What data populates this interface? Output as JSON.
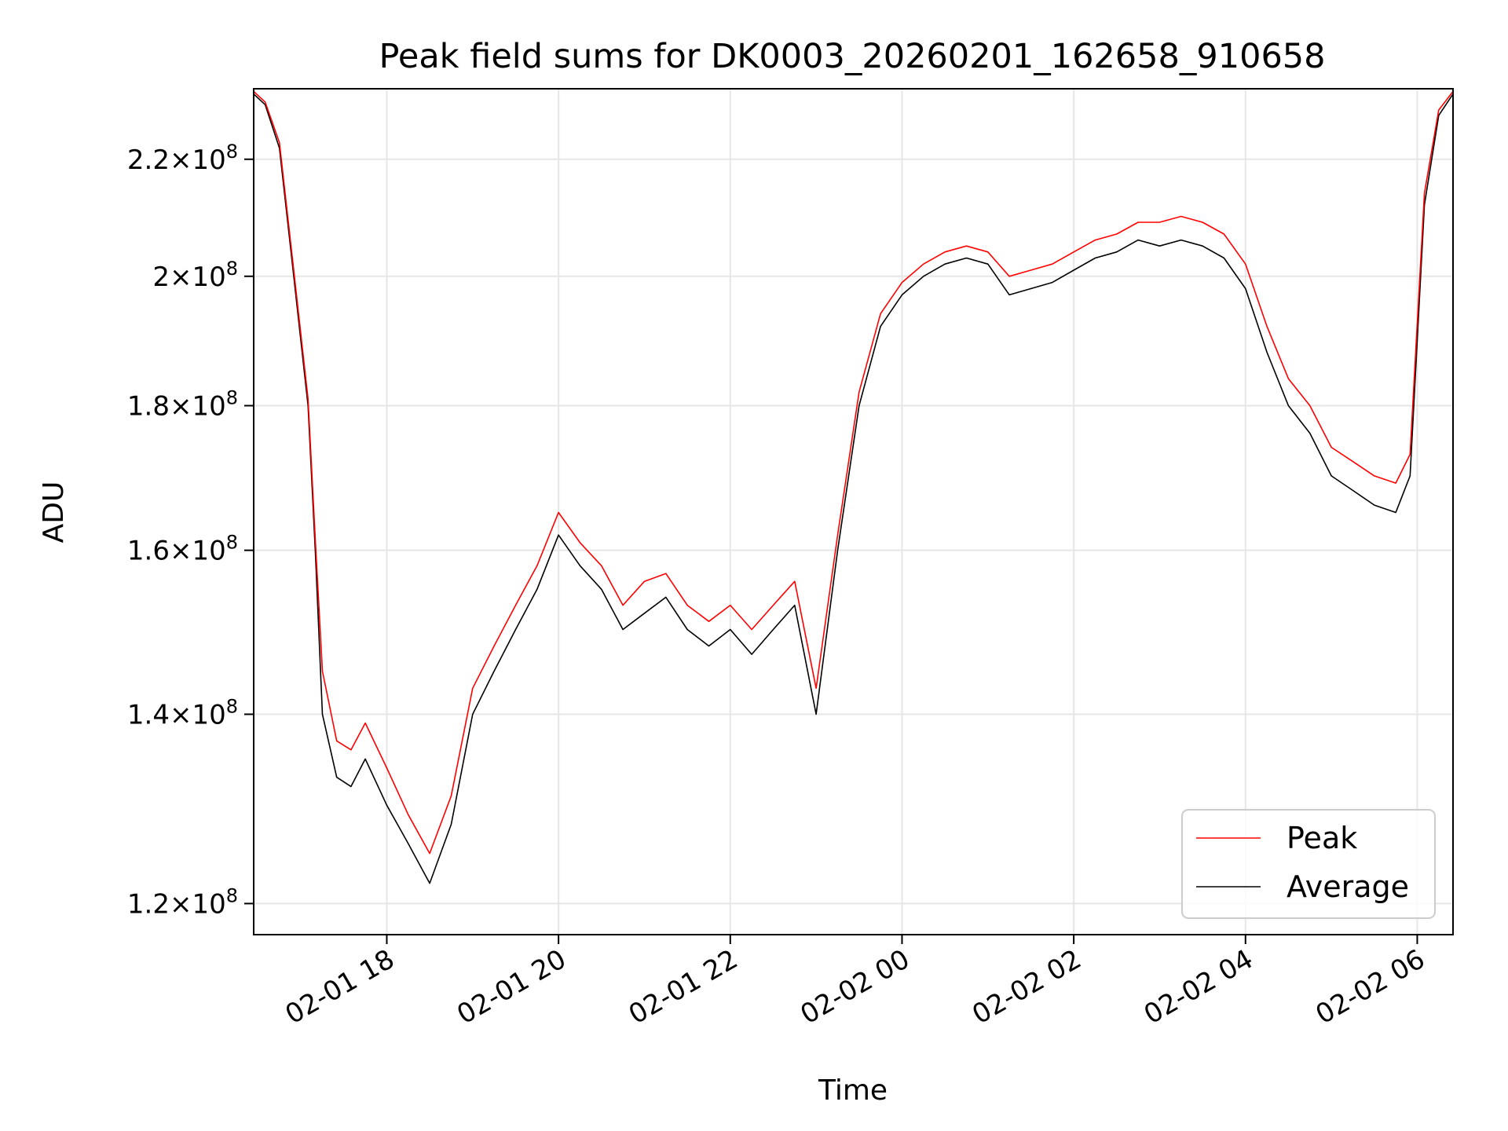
{
  "chart_data": {
    "type": "line",
    "title": "Peak field sums for DK0003_20260201_162658_910658",
    "xlabel": "Time",
    "ylabel": "ADU",
    "y_scale": "log",
    "ylim": [
      117000000,
      233000000
    ],
    "x_range": [
      "2026-02-01 16:27",
      "2026-02-02 06:25"
    ],
    "x_ticks": [
      {
        "value": "2026-02-01 18:00",
        "label": "02-01 18"
      },
      {
        "value": "2026-02-01 20:00",
        "label": "02-01 20"
      },
      {
        "value": "2026-02-01 22:00",
        "label": "02-01 22"
      },
      {
        "value": "2026-02-02 00:00",
        "label": "02-02 00"
      },
      {
        "value": "2026-02-02 02:00",
        "label": "02-02 02"
      },
      {
        "value": "2026-02-02 04:00",
        "label": "02-02 04"
      },
      {
        "value": "2026-02-02 06:00",
        "label": "02-02 06"
      }
    ],
    "y_ticks": [
      {
        "value": 120000000,
        "base": "1.2",
        "exp": "8"
      },
      {
        "value": 140000000,
        "base": "1.4",
        "exp": "8"
      },
      {
        "value": 160000000,
        "base": "1.6",
        "exp": "8"
      },
      {
        "value": 180000000,
        "base": "1.8",
        "exp": "8"
      },
      {
        "value": 200000000,
        "base": "2",
        "exp": "8"
      },
      {
        "value": 220000000,
        "base": "2.2",
        "exp": "8"
      }
    ],
    "grid": true,
    "legend_position": "bottom-right",
    "series": [
      {
        "name": "Average",
        "color": "#000000",
        "x": [
          "2026-02-01 16:27",
          "2026-02-01 16:35",
          "2026-02-01 16:45",
          "2026-02-01 16:55",
          "2026-02-01 17:05",
          "2026-02-01 17:10",
          "2026-02-01 17:15",
          "2026-02-01 17:25",
          "2026-02-01 17:35",
          "2026-02-01 17:45",
          "2026-02-01 18:00",
          "2026-02-01 18:15",
          "2026-02-01 18:30",
          "2026-02-01 18:45",
          "2026-02-01 19:00",
          "2026-02-01 19:15",
          "2026-02-01 19:30",
          "2026-02-01 19:45",
          "2026-02-01 20:00",
          "2026-02-01 20:15",
          "2026-02-01 20:30",
          "2026-02-01 20:45",
          "2026-02-01 21:00",
          "2026-02-01 21:15",
          "2026-02-01 21:30",
          "2026-02-01 21:45",
          "2026-02-01 22:00",
          "2026-02-01 22:15",
          "2026-02-01 22:30",
          "2026-02-01 22:45",
          "2026-02-01 23:00",
          "2026-02-01 23:15",
          "2026-02-01 23:30",
          "2026-02-01 23:45",
          "2026-02-02 00:00",
          "2026-02-02 00:15",
          "2026-02-02 00:30",
          "2026-02-02 00:45",
          "2026-02-02 01:00",
          "2026-02-02 01:15",
          "2026-02-02 01:30",
          "2026-02-02 01:45",
          "2026-02-02 02:00",
          "2026-02-02 02:15",
          "2026-02-02 02:30",
          "2026-02-02 02:45",
          "2026-02-02 03:00",
          "2026-02-02 03:15",
          "2026-02-02 03:30",
          "2026-02-02 03:45",
          "2026-02-02 04:00",
          "2026-02-02 04:15",
          "2026-02-02 04:30",
          "2026-02-02 04:45",
          "2026-02-02 05:00",
          "2026-02-02 05:15",
          "2026-02-02 05:30",
          "2026-02-02 05:45",
          "2026-02-02 05:55",
          "2026-02-02 06:05",
          "2026-02-02 06:15",
          "2026-02-02 06:25"
        ],
        "values": [
          232000000,
          230000000,
          222000000,
          200000000,
          180000000,
          160000000,
          140000000,
          133000000,
          132000000,
          135000000,
          130000000,
          126000000,
          122000000,
          128000000,
          140000000,
          145000000,
          150000000,
          155000000,
          162000000,
          158000000,
          155000000,
          150000000,
          152000000,
          154000000,
          150000000,
          148000000,
          150000000,
          147000000,
          150000000,
          153000000,
          140000000,
          160000000,
          180000000,
          192000000,
          197000000,
          200000000,
          202000000,
          203000000,
          202000000,
          197000000,
          198000000,
          199000000,
          201000000,
          203000000,
          204000000,
          206000000,
          205000000,
          206000000,
          205000000,
          203000000,
          198000000,
          188000000,
          180000000,
          176000000,
          170000000,
          168000000,
          166000000,
          165000000,
          170000000,
          212000000,
          228000000,
          232000000
        ]
      },
      {
        "name": "Peak",
        "color": "#ff0000",
        "x": [
          "2026-02-01 16:27",
          "2026-02-01 16:35",
          "2026-02-01 16:45",
          "2026-02-01 16:55",
          "2026-02-01 17:05",
          "2026-02-01 17:10",
          "2026-02-01 17:15",
          "2026-02-01 17:25",
          "2026-02-01 17:35",
          "2026-02-01 17:45",
          "2026-02-01 18:00",
          "2026-02-01 18:15",
          "2026-02-01 18:30",
          "2026-02-01 18:45",
          "2026-02-01 19:00",
          "2026-02-01 19:15",
          "2026-02-01 19:30",
          "2026-02-01 19:45",
          "2026-02-01 20:00",
          "2026-02-01 20:15",
          "2026-02-01 20:30",
          "2026-02-01 20:45",
          "2026-02-01 21:00",
          "2026-02-01 21:15",
          "2026-02-01 21:30",
          "2026-02-01 21:45",
          "2026-02-01 22:00",
          "2026-02-01 22:15",
          "2026-02-01 22:30",
          "2026-02-01 22:45",
          "2026-02-01 23:00",
          "2026-02-01 23:15",
          "2026-02-01 23:30",
          "2026-02-01 23:45",
          "2026-02-02 00:00",
          "2026-02-02 00:15",
          "2026-02-02 00:30",
          "2026-02-02 00:45",
          "2026-02-02 01:00",
          "2026-02-02 01:15",
          "2026-02-02 01:30",
          "2026-02-02 01:45",
          "2026-02-02 02:00",
          "2026-02-02 02:15",
          "2026-02-02 02:30",
          "2026-02-02 02:45",
          "2026-02-02 03:00",
          "2026-02-02 03:15",
          "2026-02-02 03:30",
          "2026-02-02 03:45",
          "2026-02-02 04:00",
          "2026-02-02 04:15",
          "2026-02-02 04:30",
          "2026-02-02 04:45",
          "2026-02-02 05:00",
          "2026-02-02 05:15",
          "2026-02-02 05:30",
          "2026-02-02 05:45",
          "2026-02-02 05:55",
          "2026-02-02 06:05",
          "2026-02-02 06:15",
          "2026-02-02 06:25"
        ],
        "values": [
          232500000,
          230500000,
          223000000,
          201000000,
          181000000,
          161500000,
          145000000,
          137000000,
          136000000,
          139000000,
          134000000,
          129000000,
          125000000,
          131000000,
          143000000,
          148000000,
          153000000,
          158000000,
          165000000,
          161000000,
          158000000,
          153000000,
          156000000,
          157000000,
          153000000,
          151000000,
          153000000,
          150000000,
          153000000,
          156000000,
          143000000,
          162000000,
          182000000,
          194000000,
          199000000,
          202000000,
          204000000,
          205000000,
          204000000,
          200000000,
          201000000,
          202000000,
          204000000,
          206000000,
          207000000,
          209000000,
          209000000,
          210000000,
          209000000,
          207000000,
          202000000,
          192000000,
          184000000,
          180000000,
          174000000,
          172000000,
          170000000,
          169000000,
          173000000,
          214000000,
          229000000,
          232500000
        ]
      }
    ]
  }
}
